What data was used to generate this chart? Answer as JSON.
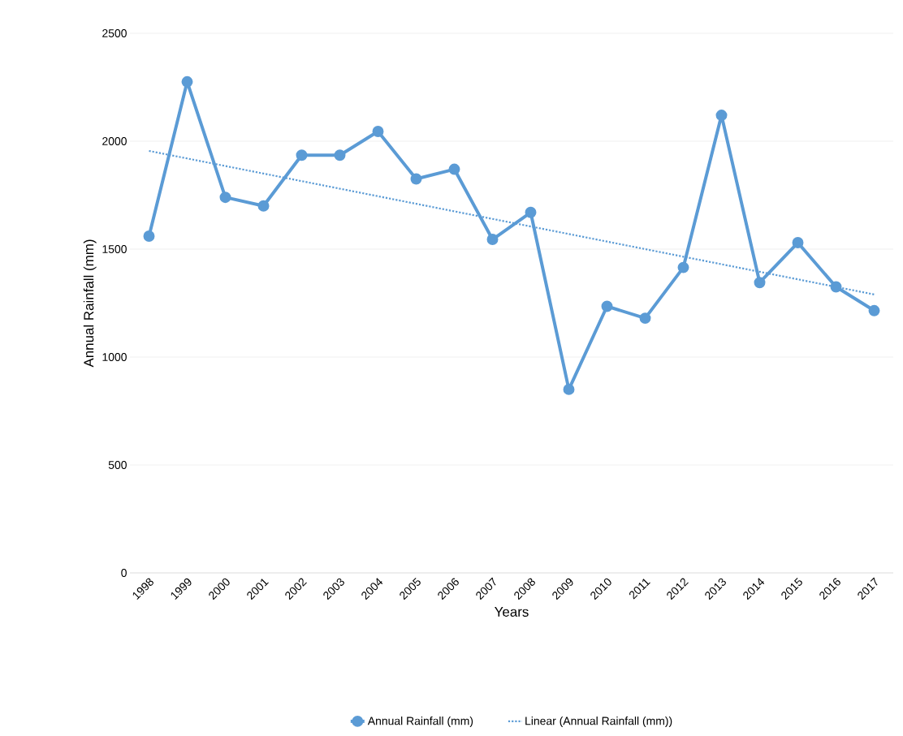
{
  "chart_data": {
    "type": "line",
    "xlabel": "Years",
    "ylabel": "Annual Rainfall (mm)",
    "categories": [
      "1998",
      "1999",
      "2000",
      "2001",
      "2002",
      "2003",
      "2004",
      "2005",
      "2006",
      "2007",
      "2008",
      "2009",
      "2010",
      "2011",
      "2012",
      "2013",
      "2014",
      "2015",
      "2016",
      "2017"
    ],
    "series": [
      {
        "name": "Annual Rainfall (mm)",
        "color": "#5b9bd5",
        "marker": "circle",
        "line_style": "solid",
        "values": [
          1560,
          2275,
          1740,
          1700,
          1935,
          1935,
          2045,
          1825,
          1870,
          1545,
          1670,
          850,
          1235,
          1180,
          1415,
          2120,
          1345,
          1530,
          1325,
          1215
        ]
      },
      {
        "name": "Linear (Annual Rainfall (mm))",
        "type": "line",
        "color": "#5b9bd5",
        "marker": "none",
        "line_style": "dotted",
        "values": [
          1955,
          1920,
          1885,
          1850,
          1815,
          1780,
          1745,
          1710,
          1675,
          1640,
          1605,
          1570,
          1535,
          1500,
          1465,
          1430,
          1395,
          1360,
          1325,
          1290
        ]
      }
    ],
    "ylim": [
      0,
      2500
    ],
    "yticks": [
      0,
      500,
      1000,
      1500,
      2000,
      2500
    ],
    "grid": "y",
    "legend": "bottom"
  }
}
